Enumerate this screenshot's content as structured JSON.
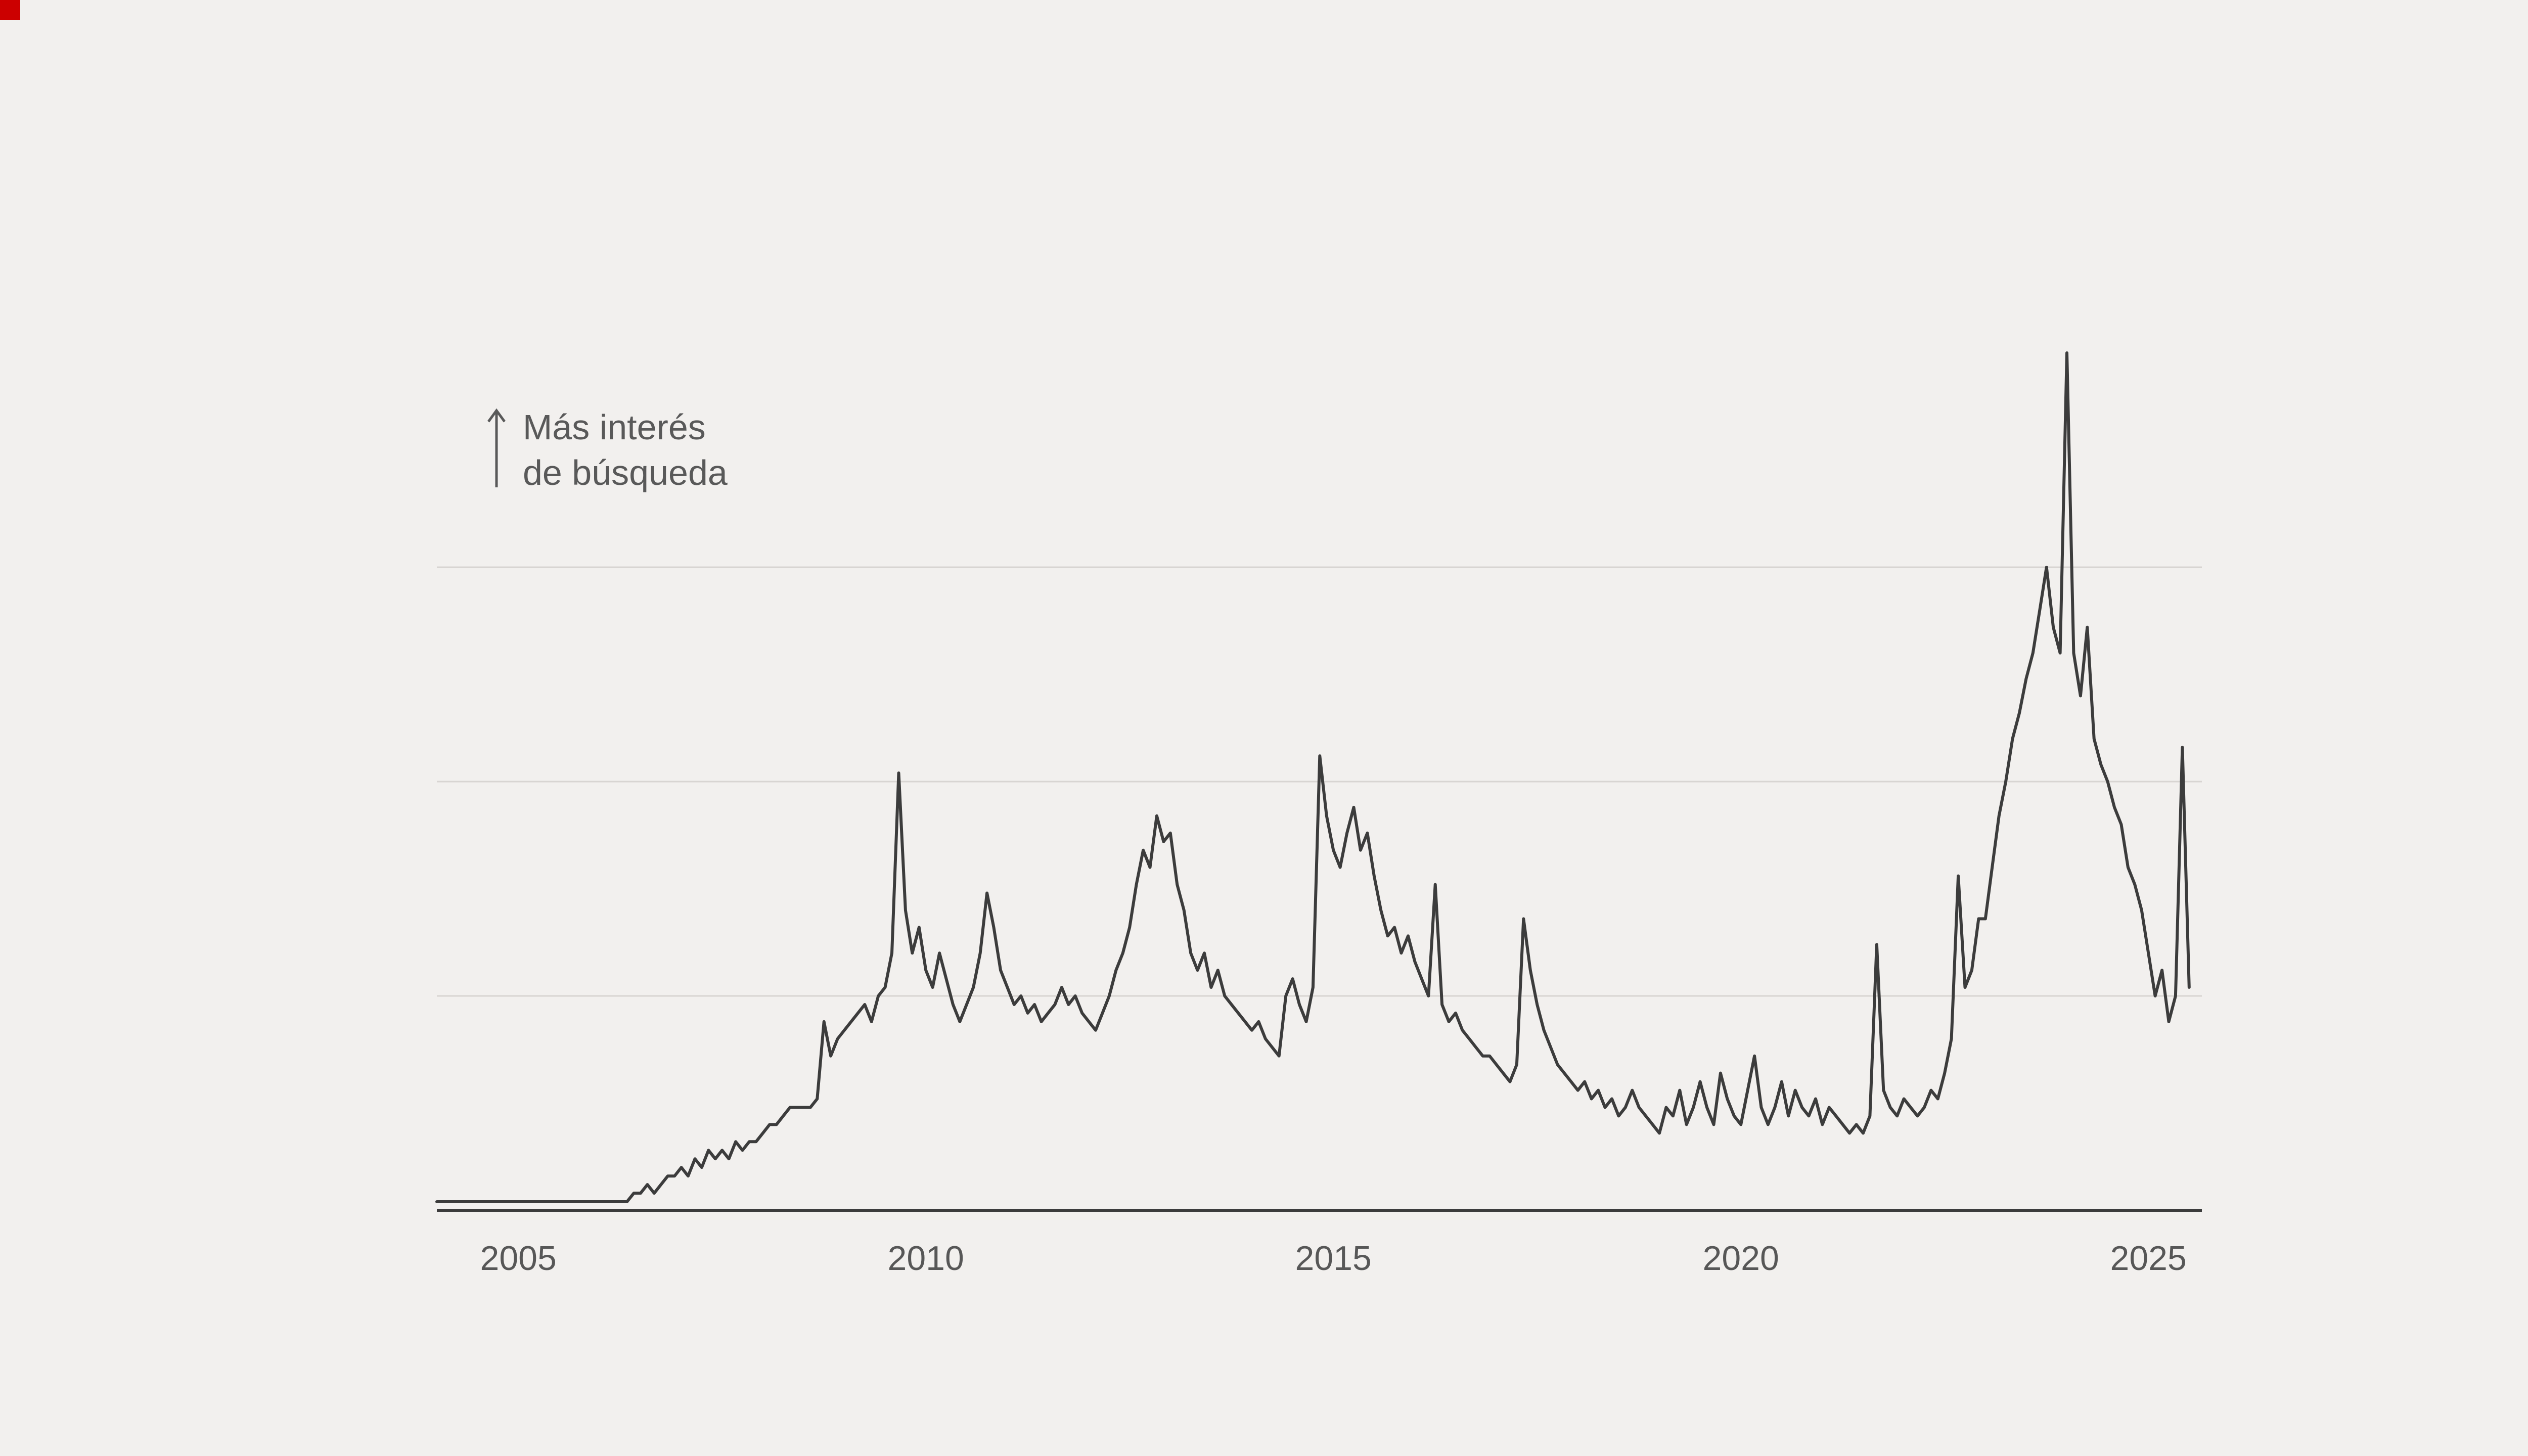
{
  "app": {
    "background_color": "#f2f0ee"
  },
  "ui": {
    "corner_marker_color": "#cc0000"
  },
  "annotation": {
    "icon": "up-arrow-icon",
    "line1": "Más interés",
    "line2": "de búsqueda",
    "color": "#595959"
  },
  "x_axis": {
    "ticks": [
      {
        "year": 2005,
        "label": "2005"
      },
      {
        "year": 2010,
        "label": "2010"
      },
      {
        "year": 2015,
        "label": "2015"
      },
      {
        "year": 2020,
        "label": "2020"
      },
      {
        "year": 2025,
        "label": "2025"
      }
    ],
    "label_color": "#575757"
  },
  "chart_data": {
    "type": "line",
    "title": "",
    "series_name": "interés de búsqueda",
    "frequency": "monthly",
    "x_start": "2004-01",
    "x_end": "2025-07",
    "ylim": [
      0,
      100
    ],
    "gridline_values": [
      25,
      50,
      75
    ],
    "grid_on": true,
    "legend": "none",
    "line_color": "#3c3c3c",
    "grid_color": "#d8d5d2",
    "axis_color": "#3c3c3c",
    "values": [
      1,
      1,
      1,
      1,
      1,
      1,
      1,
      1,
      1,
      1,
      1,
      1,
      1,
      1,
      1,
      1,
      1,
      1,
      1,
      1,
      1,
      1,
      1,
      1,
      1,
      1,
      1,
      1,
      1,
      2,
      2,
      3,
      2,
      3,
      4,
      4,
      5,
      4,
      6,
      5,
      7,
      6,
      7,
      6,
      8,
      7,
      8,
      8,
      9,
      10,
      10,
      11,
      12,
      12,
      12,
      12,
      13,
      22,
      18,
      20,
      21,
      22,
      23,
      24,
      22,
      25,
      26,
      30,
      51,
      35,
      30,
      33,
      28,
      26,
      30,
      27,
      24,
      22,
      24,
      26,
      30,
      37,
      33,
      28,
      26,
      24,
      25,
      23,
      24,
      22,
      23,
      24,
      26,
      24,
      25,
      23,
      22,
      21,
      23,
      25,
      28,
      30,
      33,
      38,
      42,
      40,
      46,
      43,
      44,
      38,
      35,
      30,
      28,
      30,
      26,
      28,
      25,
      24,
      23,
      22,
      21,
      22,
      20,
      19,
      18,
      25,
      27,
      24,
      22,
      26,
      53,
      46,
      42,
      40,
      44,
      47,
      42,
      44,
      39,
      35,
      32,
      33,
      30,
      32,
      29,
      27,
      25,
      38,
      24,
      22,
      23,
      21,
      20,
      19,
      18,
      18,
      17,
      16,
      15,
      17,
      34,
      28,
      24,
      21,
      19,
      17,
      16,
      15,
      14,
      15,
      13,
      14,
      12,
      13,
      11,
      12,
      14,
      12,
      11,
      10,
      9,
      12,
      11,
      14,
      10,
      12,
      15,
      12,
      10,
      16,
      13,
      11,
      10,
      14,
      18,
      12,
      10,
      12,
      15,
      11,
      14,
      12,
      11,
      13,
      10,
      12,
      11,
      10,
      9,
      10,
      9,
      11,
      31,
      14,
      12,
      11,
      13,
      12,
      11,
      12,
      14,
      13,
      16,
      20,
      39,
      26,
      28,
      34,
      34,
      40,
      46,
      50,
      55,
      58,
      62,
      65,
      70,
      75,
      68,
      65,
      100,
      65,
      60,
      68,
      55,
      52,
      50,
      47,
      45,
      40,
      38,
      35,
      30,
      25,
      28,
      22,
      25,
      54,
      26
    ]
  }
}
